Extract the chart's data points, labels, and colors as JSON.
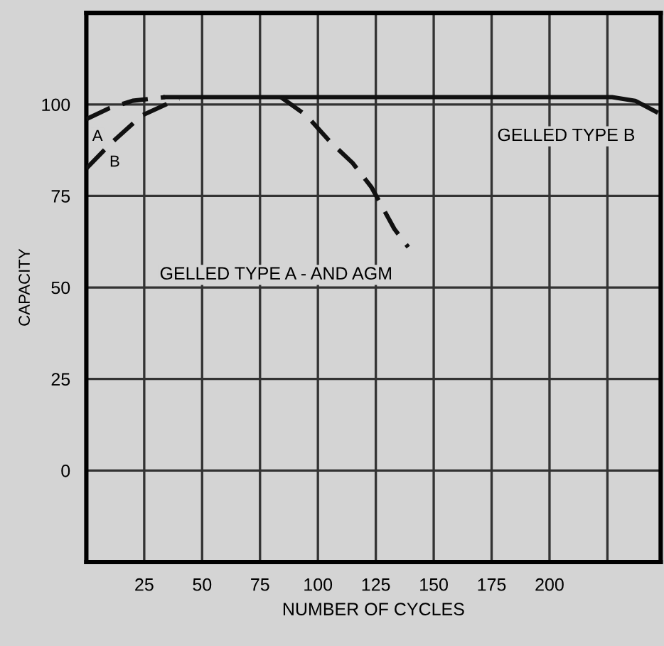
{
  "chart_data": {
    "type": "line",
    "xlabel": "NUMBER OF CYCLES",
    "ylabel": "CAPACITY",
    "xlim": [
      0,
      248
    ],
    "ylim": [
      -25,
      125
    ],
    "xticks": [
      25,
      50,
      75,
      100,
      125,
      150,
      175,
      200,
      {
        "value": 225,
        "label": null
      }
    ],
    "yticks": [
      0,
      25,
      50,
      75,
      100
    ],
    "grid": true,
    "marker": "none",
    "series": [
      {
        "name": "A",
        "color": "#111111",
        "line_style": "dashed",
        "x": [
          0,
          10,
          20,
          34
        ],
        "values": [
          96,
          99,
          101,
          102
        ]
      },
      {
        "name": "B",
        "color": "#111111",
        "line_style": "dashed",
        "x": [
          0,
          10,
          24,
          40
        ],
        "values": [
          82.5,
          89,
          97,
          101.6
        ]
      },
      {
        "name": "GELLED TYPE B",
        "color": "#111111",
        "line_style": "solid",
        "x": [
          34,
          100,
          227,
          237,
          246
        ],
        "values": [
          102,
          102,
          102,
          101,
          98
        ]
      },
      {
        "name": "GELLED TYPE A - AND AGM",
        "color": "#111111",
        "line_style": "dashed",
        "x": [
          84,
          95,
          105,
          115,
          123,
          133,
          139
        ],
        "values": [
          102,
          97,
          90,
          84,
          77.5,
          66,
          61
        ]
      }
    ]
  }
}
